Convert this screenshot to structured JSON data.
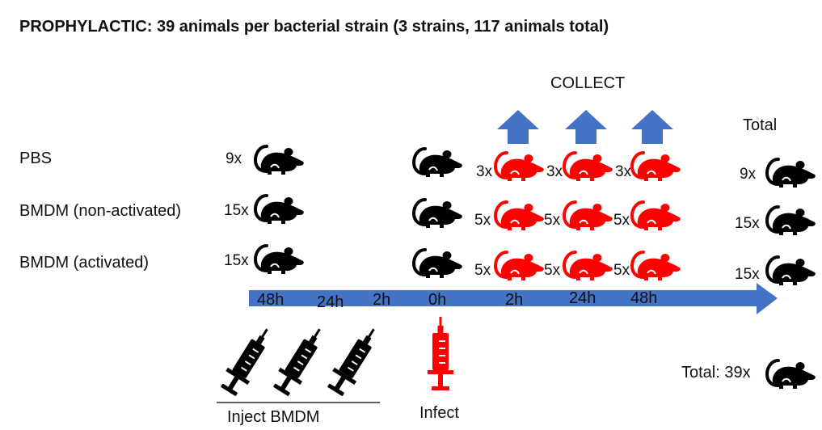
{
  "title": "PROPHYLACTIC: 39 animals per bacterial strain (3 strains, 117 animals total)",
  "collect_label": "COLLECT",
  "total_header": "Total",
  "rows": [
    {
      "label": "PBS",
      "pre_count": "9x",
      "collect_counts": [
        "3x",
        "3x",
        "3x"
      ],
      "total": "9x"
    },
    {
      "label": "BMDM (non-activated)",
      "pre_count": "15x",
      "collect_counts": [
        "5x",
        "5x",
        "5x"
      ],
      "total": "15x"
    },
    {
      "label": "BMDM (activated)",
      "pre_count": "15x",
      "collect_counts": [
        "5x",
        "5x",
        "5x"
      ],
      "total": "15x"
    }
  ],
  "timeline": {
    "ticks": [
      "48h",
      "24h",
      "2h",
      "0h",
      "2h",
      "24h",
      "48h"
    ],
    "color": "#4472C4"
  },
  "inject_label": "Inject BMDM",
  "infect_label": "Infect",
  "grand_total": "Total: 39x",
  "colors": {
    "arrow": "#4472C4",
    "infected": "#FF0000",
    "healthy": "#000000"
  },
  "icons": {
    "mouse": "mouse-icon",
    "syringe": "syringe-icon",
    "arrow": "up-arrow-icon"
  }
}
